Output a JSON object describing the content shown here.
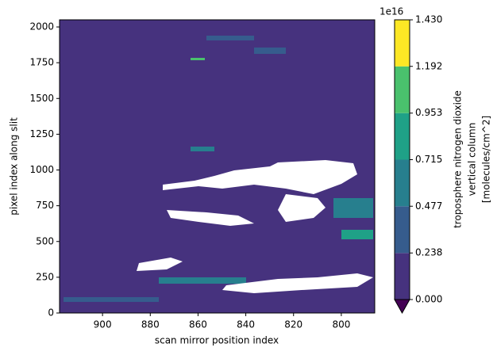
{
  "chart_data": {
    "type": "contour",
    "xlabel": "scan mirror position index",
    "ylabel": "pixel index along slit",
    "xlim": [
      918,
      786
    ],
    "xticks": [
      900,
      880,
      860,
      840,
      820,
      800
    ],
    "ylim": [
      0,
      2050
    ],
    "yticks": [
      0,
      250,
      500,
      750,
      1000,
      1250,
      1500,
      1750,
      2000
    ],
    "colorbar": {
      "offset_text": "1e16",
      "label": [
        "troposphere nitrogen dioxide",
        "vertical column",
        "[molecules/cm^2]"
      ],
      "levels": [
        {
          "value": 0,
          "label": "0.000"
        },
        0.238,
        0.477,
        0.715,
        0.953,
        1.192,
        {
          "value": 1.43,
          "label": "1.430"
        }
      ],
      "colors": [
        "#46327e",
        "#365c8d",
        "#277f8e",
        "#1fa187",
        "#4ac16d",
        "#fde725"
      ],
      "extend_color": "#440154"
    }
  }
}
